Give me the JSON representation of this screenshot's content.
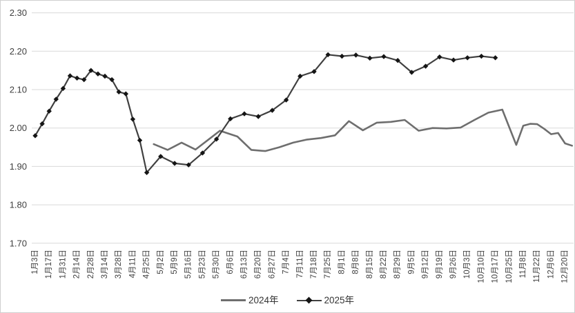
{
  "chart_data": {
    "type": "line",
    "title": "",
    "grid": "horizontal",
    "background": "#ffffff",
    "y_axis": {
      "min": 1.7,
      "max": 2.3,
      "step": 0.1,
      "ticks": [
        2.3,
        2.2,
        2.1,
        2.0,
        1.9,
        1.8,
        1.7
      ],
      "decimals": 2
    },
    "x_axis": {
      "label_rotation_deg": 90,
      "labels": [
        "1月3日",
        "1月17日",
        "1月31日",
        "2月14日",
        "2月28日",
        "3月14日",
        "3月28日",
        "4月11日",
        "4月25日",
        "5月2日",
        "5月9日",
        "5月16日",
        "5月23日",
        "5月30日",
        "6月6日",
        "6月13日",
        "6月20日",
        "6月27日",
        "7月4日",
        "7月11日",
        "7月18日",
        "7月25日",
        "8月1日",
        "8月8日",
        "8月15日",
        "8月22日",
        "8月29日",
        "9月5日",
        "9月12日",
        "9月19日",
        "9月26日",
        "10月3日",
        "10月10日",
        "10月17日",
        "10月25日",
        "11月8日",
        "11月22日",
        "12月6日",
        "12月20日"
      ]
    },
    "legend": {
      "position": "bottom-center",
      "entries": [
        "2024年",
        "2025年"
      ]
    },
    "series": [
      {
        "name": "2024年",
        "color": "#6e6e6e",
        "line_width": 2.6,
        "marker": "none",
        "points": [
          [
            8.5,
            1.958
          ],
          [
            9.5,
            1.943
          ],
          [
            10.5,
            1.962
          ],
          [
            11.5,
            1.944
          ],
          [
            12.5,
            1.972
          ],
          [
            13.25,
            1.993
          ],
          [
            14.5,
            1.978
          ],
          [
            15.5,
            1.943
          ],
          [
            16.5,
            1.94
          ],
          [
            17.5,
            1.95
          ],
          [
            18.5,
            1.962
          ],
          [
            19.5,
            1.97
          ],
          [
            20.5,
            1.974
          ],
          [
            21.5,
            1.981
          ],
          [
            22.5,
            2.018
          ],
          [
            23.5,
            1.994
          ],
          [
            24.5,
            2.014
          ],
          [
            25.5,
            2.016
          ],
          [
            26.5,
            2.021
          ],
          [
            27.5,
            1.993
          ],
          [
            28.5,
            2.0
          ],
          [
            29.5,
            1.999
          ],
          [
            30.5,
            2.001
          ],
          [
            31.5,
            2.021
          ],
          [
            32.5,
            2.04
          ],
          [
            33.5,
            2.048
          ],
          [
            34.0,
            2.002
          ],
          [
            34.5,
            1.956
          ],
          [
            35.0,
            2.006
          ],
          [
            35.5,
            2.011
          ],
          [
            36.0,
            2.01
          ],
          [
            36.5,
            1.998
          ],
          [
            37.0,
            1.984
          ],
          [
            37.5,
            1.987
          ],
          [
            38.0,
            1.96
          ],
          [
            38.5,
            1.954
          ]
        ]
      },
      {
        "name": "2025年",
        "color": "#404040",
        "line_width": 2.2,
        "marker": "diamond",
        "marker_color": "#151515",
        "marker_size": 7.4,
        "points": [
          [
            0,
            1.98
          ],
          [
            0.5,
            2.011
          ],
          [
            1,
            2.044
          ],
          [
            1.5,
            2.075
          ],
          [
            2,
            2.103
          ],
          [
            2.5,
            2.136
          ],
          [
            3,
            2.13
          ],
          [
            3.5,
            2.126
          ],
          [
            4,
            2.15
          ],
          [
            4.5,
            2.141
          ],
          [
            5,
            2.135
          ],
          [
            5.5,
            2.126
          ],
          [
            6,
            2.094
          ],
          [
            6.5,
            2.089
          ],
          [
            7,
            2.023
          ],
          [
            7.5,
            1.968
          ],
          [
            8,
            1.884
          ],
          [
            9,
            1.926
          ],
          [
            10,
            1.908
          ],
          [
            11,
            1.904
          ],
          [
            12,
            1.935
          ],
          [
            13,
            1.971
          ],
          [
            14,
            2.024
          ],
          [
            15,
            2.037
          ],
          [
            16,
            2.03
          ],
          [
            17,
            2.046
          ],
          [
            18,
            2.073
          ],
          [
            19,
            2.135
          ],
          [
            20,
            2.147
          ],
          [
            21,
            2.191
          ],
          [
            22,
            2.187
          ],
          [
            23,
            2.19
          ],
          [
            24,
            2.182
          ],
          [
            25,
            2.186
          ],
          [
            26,
            2.176
          ],
          [
            27,
            2.145
          ],
          [
            28,
            2.161
          ],
          [
            29,
            2.185
          ],
          [
            30,
            2.177
          ],
          [
            31,
            2.183
          ],
          [
            32,
            2.187
          ],
          [
            33,
            2.183
          ]
        ]
      }
    ]
  },
  "colors": {
    "gridline": "#d9d9d9",
    "tick_text": "#404040",
    "series_2024": "#6e6e6e",
    "series_2025": "#404040",
    "marker": "#151515"
  }
}
